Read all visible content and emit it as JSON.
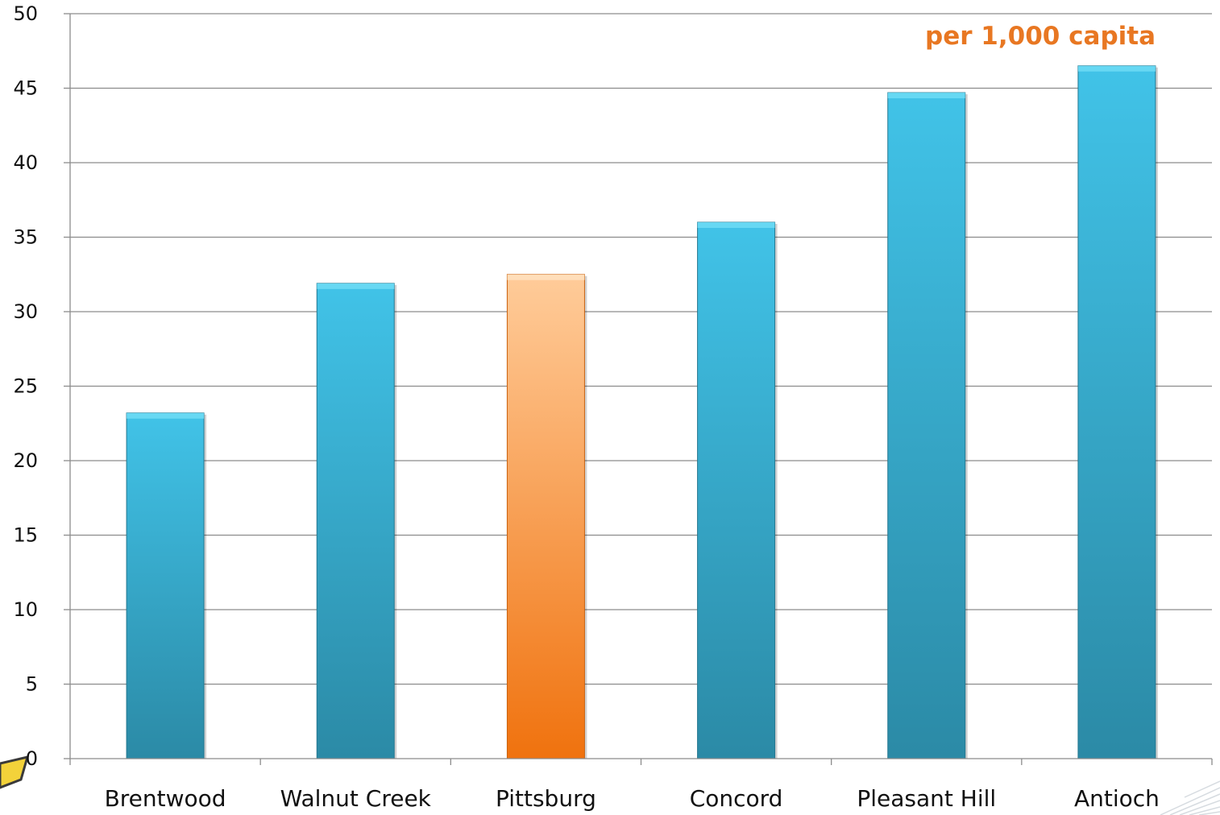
{
  "chart_data": {
    "type": "bar",
    "title": "",
    "xlabel": "",
    "ylabel": "",
    "annotation": "per 1,000 capita",
    "categories": [
      "Brentwood",
      "Walnut Creek",
      "Pittsburg",
      "Concord",
      "Pleasant Hill",
      "Antioch"
    ],
    "values": [
      23.2,
      31.9,
      32.5,
      36,
      44.7,
      46.5
    ],
    "highlighted_category": "Pittsburg",
    "ylim": [
      0,
      50
    ],
    "yticks": [
      0,
      5,
      10,
      15,
      20,
      25,
      30,
      35,
      40,
      45,
      50
    ],
    "grid": true,
    "legend": "none",
    "colors": {
      "bar": "#31a9cc",
      "bar_top": "#41c3e8",
      "bar_bottom": "#2b8aa6",
      "highlight": "#fb8a2c",
      "highlight_top": "#ffcc9a",
      "highlight_bottom": "#f0720e",
      "annotation": "#e87722",
      "grid": "#8c8c8c"
    }
  }
}
